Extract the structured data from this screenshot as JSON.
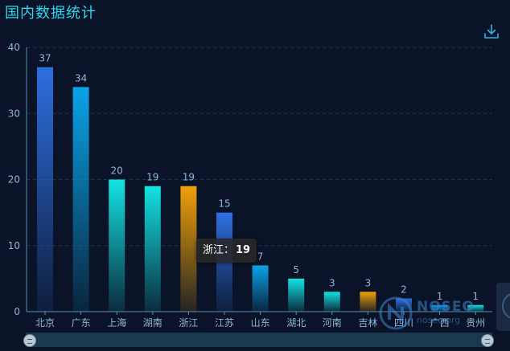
{
  "title": "国内数据统计",
  "toolbar": {
    "download_icon": "download-icon"
  },
  "tooltip": {
    "label": "浙江：",
    "value": "19"
  },
  "watermark": {
    "text": "NOSEO",
    "subtext": "noseo.org"
  },
  "colors": {
    "background": "#0a1327",
    "blue": "#2d6fe0",
    "sky": "#0aa3e8",
    "cyan": "#13e3e3",
    "orange": "#f0a10a",
    "axis": "#5f8fb0",
    "label": "#8fb6d6"
  },
  "chart_data": {
    "type": "bar",
    "title": "国内数据统计",
    "xlabel": "",
    "ylabel": "",
    "ylim": [
      0,
      40
    ],
    "yticks": [
      0,
      10,
      20,
      30,
      40
    ],
    "grid": true,
    "categories": [
      "北京",
      "广东",
      "上海",
      "湖南",
      "浙江",
      "江苏",
      "山东",
      "湖北",
      "河南",
      "吉林",
      "四川",
      "广西",
      "贵州"
    ],
    "values": [
      37,
      34,
      20,
      19,
      19,
      15,
      7,
      5,
      3,
      3,
      2,
      1,
      1
    ],
    "bar_colors": [
      "blue",
      "sky",
      "cyan",
      "cyan",
      "orange",
      "blue",
      "sky",
      "cyan",
      "cyan",
      "orange",
      "blue",
      "sky",
      "cyan"
    ],
    "data_labels": true
  }
}
